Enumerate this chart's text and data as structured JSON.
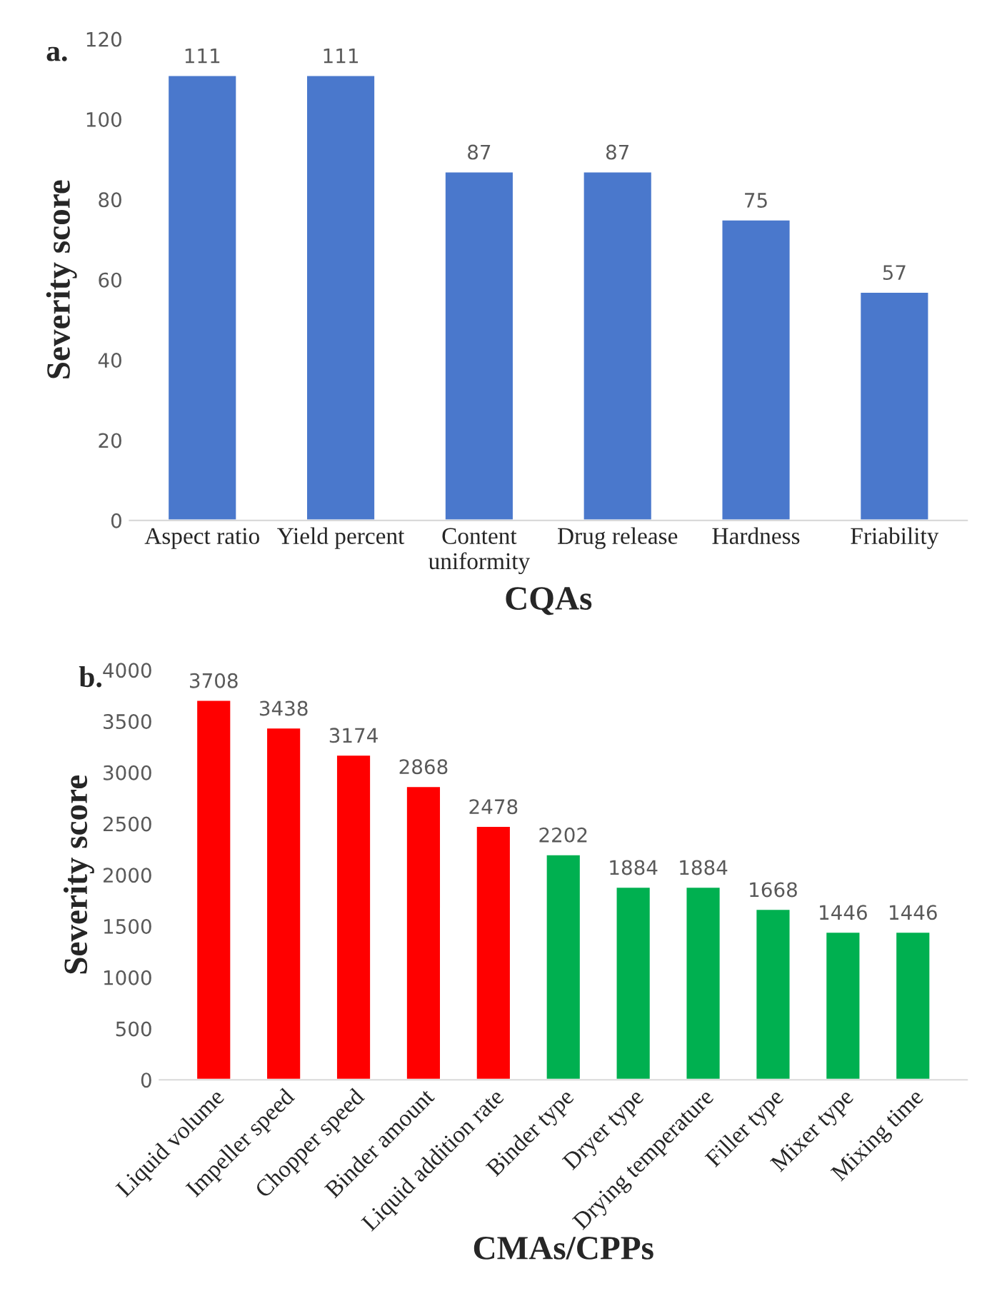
{
  "chart_data": [
    {
      "type": "bar",
      "title": "a.",
      "ylabel": "Severity score",
      "xlabel": "CQAs",
      "categories": [
        "Aspect ratio",
        "Yield percent",
        "Content\nuniformity",
        "Drug release",
        "Hardness",
        "Friability"
      ],
      "values": [
        111,
        111,
        87,
        87,
        75,
        57
      ],
      "color": "#4a78cc",
      "ylim": [
        0,
        120
      ],
      "yticks": [
        0,
        20,
        40,
        60,
        80,
        100,
        120
      ],
      "data_labels": true,
      "grid": false,
      "legend": false
    },
    {
      "type": "bar",
      "title": "b.",
      "ylabel": "Severity score",
      "xlabel": "CMAs/CPPs",
      "categories": [
        "Liquid volume",
        "Impeller speed",
        "Chopper speed",
        "Binder amount",
        "Liquid addition rate",
        "Binder type",
        "Dryer type",
        "Drying temperature",
        "Filler type",
        "Mixer type",
        "Mixing time"
      ],
      "values": [
        3708,
        3438,
        3174,
        2868,
        2478,
        2202,
        1884,
        1884,
        1668,
        1446,
        1446
      ],
      "colors": [
        "#ff0000",
        "#ff0000",
        "#ff0000",
        "#ff0000",
        "#ff0000",
        "#00b050",
        "#00b050",
        "#00b050",
        "#00b050",
        "#00b050",
        "#00b050"
      ],
      "ylim": [
        0,
        4000
      ],
      "yticks": [
        0,
        500,
        1000,
        1500,
        2000,
        2500,
        3000,
        3500,
        4000
      ],
      "data_labels": true,
      "grid": false,
      "legend": false
    }
  ]
}
